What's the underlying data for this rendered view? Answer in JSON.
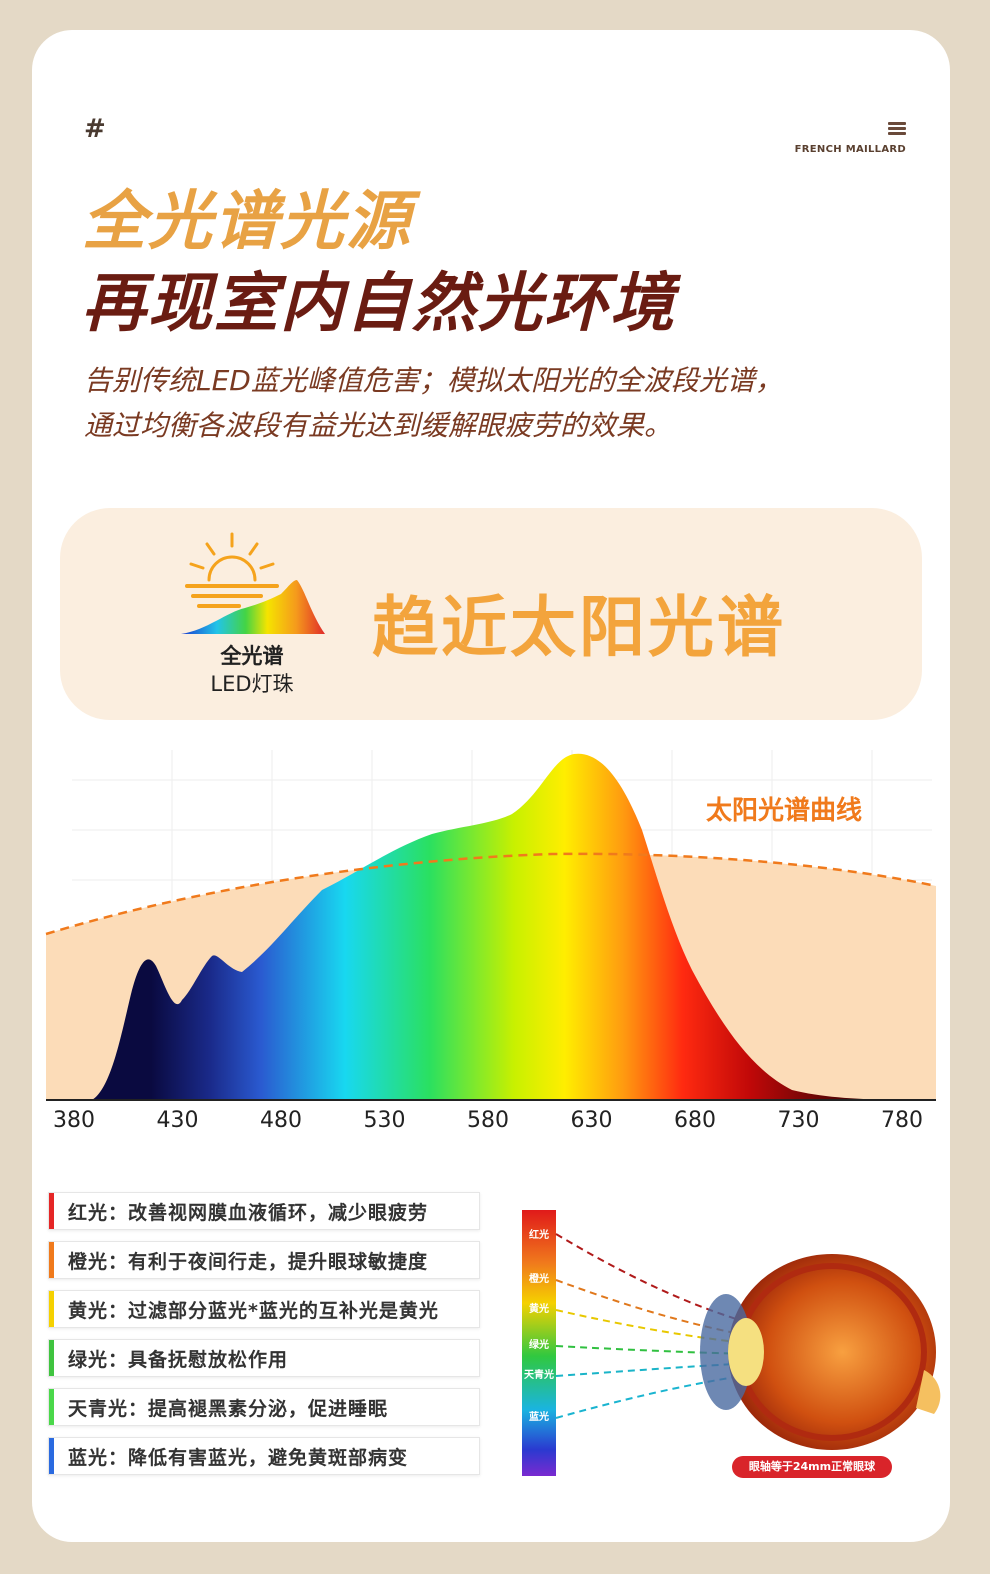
{
  "header": {
    "hash": "#",
    "brand_icon": "menu-lines-icon",
    "brand": "FRENCH MAILLARD"
  },
  "title_line1": "全光谱光源",
  "title_line2": "再现室内自然光环境",
  "description": {
    "line1": "告别传统LED蓝光峰值危害；模拟太阳光的全波段光谱，",
    "line2": "通过均衡各波段有益光达到缓解眼疲劳的效果。"
  },
  "banner": {
    "icon": "sun-spectrum-icon",
    "led_label_bold": "全光谱",
    "led_label": "LED灯珠",
    "title": "趋近太阳光谱"
  },
  "chart": {
    "curve_label": "太阳光谱曲线",
    "ticks": [
      "380",
      "430",
      "480",
      "530",
      "580",
      "630",
      "680",
      "730",
      "780"
    ],
    "colors": {
      "sun_fill": "#fcdcb8",
      "sun_curve": "#f07a1c"
    }
  },
  "benefits": [
    {
      "text": "红光：改善视网膜血液循环，减少眼疲劳",
      "color": "#e52626"
    },
    {
      "text": "橙光：有利于夜间行走，提升眼球敏捷度",
      "color": "#f07a1c"
    },
    {
      "text": "黄光：过滤部分蓝光*蓝光的互补光是黄光",
      "color": "#f5d100"
    },
    {
      "text": "绿光：具备抚慰放松作用",
      "color": "#3fc43f"
    },
    {
      "text": "天青光：提高褪黑素分泌，促进睡眠",
      "color": "#4ad84a"
    },
    {
      "text": "蓝光：降低有害蓝光，避免黄斑部病变",
      "color": "#2a6ae0"
    }
  ],
  "eye_diagram": {
    "bands": [
      "红光",
      "橙光",
      "黄光",
      "绿光",
      "天青光",
      "蓝光"
    ],
    "icon": "eyeball-icon",
    "badge": "眼轴等于24mm正常眼球"
  }
}
